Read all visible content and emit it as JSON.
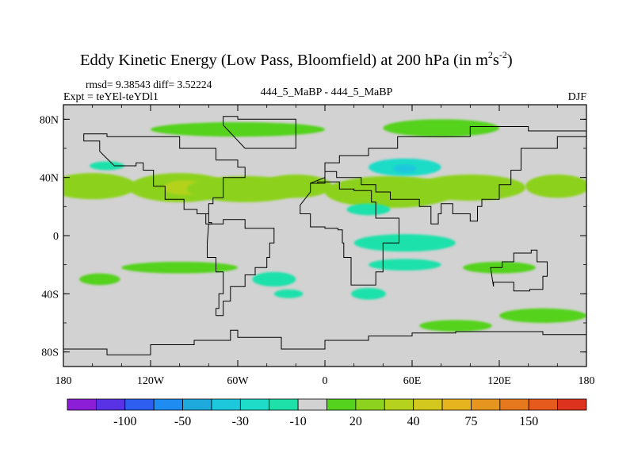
{
  "chart_data": {
    "type": "heatmap",
    "title_main": "Eddy Kinetic Energy (Low Pass, Bloomfield) at 200 hPa (in m",
    "title_unit_exp1": "2",
    "title_unit_s": "s",
    "title_unit_exp2": "-2",
    "title_close": ")",
    "stats": "rmsd= 9.38543 diff= 3.52224",
    "expt": "Expt = teYEl-teYDl1",
    "center_label": "444_5_MaBP - 444_5_MaBP",
    "season": "DJF",
    "xlim": [
      -180,
      180
    ],
    "ylim": [
      -90,
      90
    ],
    "x_ticks": [
      {
        "value": -180,
        "label": "180"
      },
      {
        "value": -120,
        "label": "120W"
      },
      {
        "value": -60,
        "label": "60W"
      },
      {
        "value": 0,
        "label": "0"
      },
      {
        "value": 60,
        "label": "60E"
      },
      {
        "value": 120,
        "label": "120E"
      },
      {
        "value": 180,
        "label": "180"
      }
    ],
    "y_ticks": [
      {
        "value": 80,
        "label": "80N"
      },
      {
        "value": 40,
        "label": "40N"
      },
      {
        "value": 0,
        "label": "0"
      },
      {
        "value": -40,
        "label": "40S"
      },
      {
        "value": -80,
        "label": "80S"
      }
    ],
    "colorbar": {
      "colors": [
        "#8b1ed6",
        "#5a32e6",
        "#2d5ef0",
        "#1e8cf0",
        "#1eaadc",
        "#1ec8dc",
        "#1edcc8",
        "#1ee1aa",
        "#d2d2d2",
        "#55d21e",
        "#8cd21e",
        "#b4d21e",
        "#d2c81e",
        "#e6b41e",
        "#e6961e",
        "#e6781e",
        "#e65a1e",
        "#dc321e"
      ],
      "labels": [
        {
          "index": 2,
          "text": "-100"
        },
        {
          "index": 4,
          "text": "-50"
        },
        {
          "index": 6,
          "text": "-30"
        },
        {
          "index": 8,
          "text": "-10"
        },
        {
          "index": 10,
          "text": "20"
        },
        {
          "index": 12,
          "text": "40"
        },
        {
          "index": 14,
          "text": "75"
        },
        {
          "index": 16,
          "text": "150"
        }
      ]
    },
    "background_color": "#d2d2d2",
    "anomalies": [
      {
        "lon": -160,
        "lat": 34,
        "rlon": 30,
        "rlat": 9,
        "color": "#8cd21e"
      },
      {
        "lon": -100,
        "lat": 33,
        "rlon": 35,
        "rlat": 10,
        "color": "#8cd21e"
      },
      {
        "lon": -97,
        "lat": 33,
        "rlon": 14,
        "rlat": 5,
        "color": "#b4d21e"
      },
      {
        "lon": -55,
        "lat": 32,
        "rlon": 40,
        "rlat": 9,
        "color": "#8cd21e"
      },
      {
        "lon": -20,
        "lat": 34,
        "rlon": 25,
        "rlat": 8,
        "color": "#8cd21e"
      },
      {
        "lon": 45,
        "lat": 30,
        "rlon": 45,
        "rlat": 11,
        "color": "#8cd21e"
      },
      {
        "lon": 100,
        "lat": 33,
        "rlon": 38,
        "rlat": 9,
        "color": "#8cd21e"
      },
      {
        "lon": 160,
        "lat": 34,
        "rlon": 22,
        "rlat": 8,
        "color": "#8cd21e"
      },
      {
        "lon": -60,
        "lat": 73,
        "rlon": 60,
        "rlat": 5,
        "color": "#55d21e"
      },
      {
        "lon": 80,
        "lat": 74,
        "rlon": 40,
        "rlat": 6,
        "color": "#55d21e"
      },
      {
        "lon": 55,
        "lat": 47,
        "rlon": 25,
        "rlat": 6,
        "color": "#1edcc8"
      },
      {
        "lon": 55,
        "lat": 46,
        "rlon": 8,
        "rlat": 3,
        "color": "#1ec8dc"
      },
      {
        "lon": -150,
        "lat": 48,
        "rlon": 12,
        "rlat": 3,
        "color": "#1ee1aa"
      },
      {
        "lon": 30,
        "lat": 18,
        "rlon": 15,
        "rlat": 4,
        "color": "#1ee1aa"
      },
      {
        "lon": 55,
        "lat": -5,
        "rlon": 35,
        "rlat": 6,
        "color": "#1ee1aa"
      },
      {
        "lon": 55,
        "lat": -20,
        "rlon": 25,
        "rlat": 4,
        "color": "#1ee1aa"
      },
      {
        "lon": -100,
        "lat": -22,
        "rlon": 40,
        "rlat": 4,
        "color": "#55d21e"
      },
      {
        "lon": -155,
        "lat": -30,
        "rlon": 14,
        "rlat": 4,
        "color": "#55d21e"
      },
      {
        "lon": 120,
        "lat": -22,
        "rlon": 25,
        "rlat": 4,
        "color": "#55d21e"
      },
      {
        "lon": -35,
        "lat": -30,
        "rlon": 15,
        "rlat": 5,
        "color": "#1ee1aa"
      },
      {
        "lon": 30,
        "lat": -40,
        "rlon": 12,
        "rlat": 4,
        "color": "#1ee1aa"
      },
      {
        "lon": -25,
        "lat": -40,
        "rlon": 10,
        "rlat": 3,
        "color": "#1ee1aa"
      },
      {
        "lon": 150,
        "lat": -55,
        "rlon": 30,
        "rlat": 5,
        "color": "#55d21e"
      },
      {
        "lon": 90,
        "lat": -62,
        "rlon": 25,
        "rlat": 4,
        "color": "#55d21e"
      }
    ],
    "continents": [
      {
        "name": "north-america",
        "points": [
          [
            -145,
            48
          ],
          [
            -130,
            50
          ],
          [
            -125,
            45
          ],
          [
            -118,
            34
          ],
          [
            -110,
            25
          ],
          [
            -97,
            18
          ],
          [
            -88,
            15
          ],
          [
            -80,
            9
          ],
          [
            -78,
            8
          ],
          [
            -82,
            15
          ],
          [
            -80,
            22
          ],
          [
            -77,
            26
          ],
          [
            -70,
            40
          ],
          [
            -55,
            47
          ],
          [
            -60,
            52
          ],
          [
            -75,
            60
          ],
          [
            -100,
            68
          ],
          [
            -150,
            70
          ],
          [
            -166,
            65
          ],
          [
            -155,
            58
          ]
        ]
      },
      {
        "name": "south-america",
        "points": [
          [
            -80,
            8
          ],
          [
            -70,
            11
          ],
          [
            -55,
            5
          ],
          [
            -35,
            -5
          ],
          [
            -38,
            -15
          ],
          [
            -40,
            -22
          ],
          [
            -48,
            -27
          ],
          [
            -55,
            -35
          ],
          [
            -65,
            -45
          ],
          [
            -70,
            -55
          ],
          [
            -75,
            -50
          ],
          [
            -73,
            -40
          ],
          [
            -70,
            -25
          ],
          [
            -75,
            -15
          ],
          [
            -81,
            -5
          ]
        ]
      },
      {
        "name": "africa",
        "points": [
          [
            -17,
            21
          ],
          [
            -17,
            15
          ],
          [
            -10,
            6
          ],
          [
            0,
            5
          ],
          [
            9,
            4
          ],
          [
            12,
            -5
          ],
          [
            13,
            -15
          ],
          [
            18,
            -34
          ],
          [
            27,
            -34
          ],
          [
            35,
            -25
          ],
          [
            40,
            -15
          ],
          [
            40,
            -5
          ],
          [
            51,
            12
          ],
          [
            43,
            12
          ],
          [
            35,
            23
          ],
          [
            32,
            31
          ],
          [
            20,
            32
          ],
          [
            10,
            37
          ],
          [
            -5,
            36
          ],
          [
            -10,
            30
          ]
        ]
      },
      {
        "name": "eurasia",
        "points": [
          [
            -10,
            36
          ],
          [
            0,
            50
          ],
          [
            10,
            55
          ],
          [
            30,
            60
          ],
          [
            50,
            68
          ],
          [
            100,
            75
          ],
          [
            140,
            72
          ],
          [
            180,
            68
          ],
          [
            160,
            60
          ],
          [
            135,
            45
          ],
          [
            128,
            35
          ],
          [
            120,
            25
          ],
          [
            108,
            20
          ],
          [
            105,
            10
          ],
          [
            100,
            15
          ],
          [
            95,
            15
          ],
          [
            88,
            22
          ],
          [
            80,
            15
          ],
          [
            78,
            8
          ],
          [
            73,
            20
          ],
          [
            65,
            25
          ],
          [
            57,
            25
          ],
          [
            52,
            25
          ],
          [
            45,
            30
          ],
          [
            35,
            35
          ],
          [
            25,
            40
          ],
          [
            15,
            40
          ],
          [
            8,
            44
          ],
          [
            0,
            40
          ]
        ]
      },
      {
        "name": "australia",
        "points": [
          [
            114,
            -22
          ],
          [
            122,
            -18
          ],
          [
            130,
            -12
          ],
          [
            136,
            -12
          ],
          [
            142,
            -10
          ],
          [
            146,
            -18
          ],
          [
            153,
            -28
          ],
          [
            150,
            -37
          ],
          [
            141,
            -38
          ],
          [
            130,
            -32
          ],
          [
            116,
            -35
          ]
        ]
      },
      {
        "name": "antarctica",
        "points": [
          [
            -180,
            -78
          ],
          [
            -150,
            -82
          ],
          [
            -120,
            -75
          ],
          [
            -90,
            -72
          ],
          [
            -65,
            -65
          ],
          [
            -60,
            -70
          ],
          [
            -30,
            -78
          ],
          [
            0,
            -72
          ],
          [
            30,
            -69
          ],
          [
            60,
            -67
          ],
          [
            90,
            -66
          ],
          [
            120,
            -66
          ],
          [
            150,
            -68
          ],
          [
            180,
            -78
          ],
          [
            180,
            -90
          ],
          [
            -180,
            -90
          ]
        ]
      },
      {
        "name": "greenland",
        "points": [
          [
            -55,
            60
          ],
          [
            -45,
            60
          ],
          [
            -20,
            70
          ],
          [
            -20,
            80
          ],
          [
            -60,
            82
          ],
          [
            -70,
            76
          ]
        ]
      }
    ]
  }
}
